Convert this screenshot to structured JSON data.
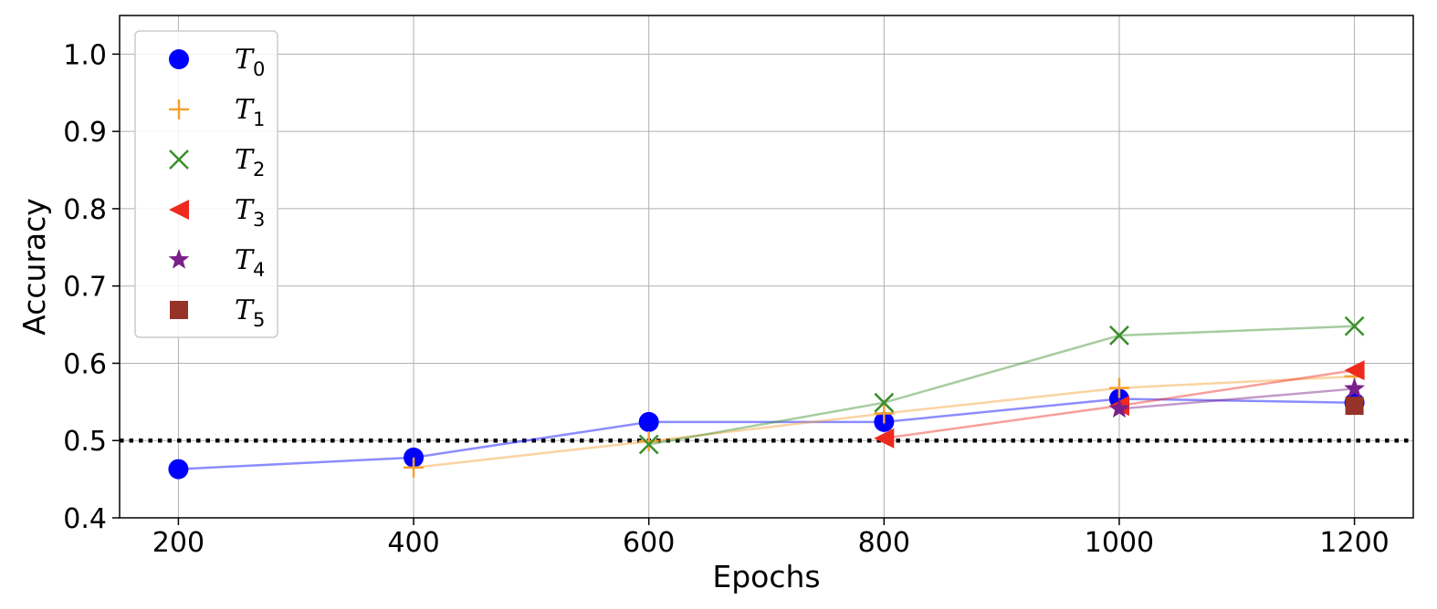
{
  "chart_data": {
    "type": "line",
    "title": "",
    "xlabel": "Epochs",
    "ylabel": "Accuracy",
    "xlim": [
      150,
      1250
    ],
    "ylim": [
      0.4,
      1.05
    ],
    "x_ticks": [
      200,
      400,
      600,
      800,
      1000,
      1200
    ],
    "x_tick_labels": [
      "200",
      "400",
      "600",
      "800",
      "1000",
      "1200"
    ],
    "y_ticks": [
      0.4,
      0.5,
      0.6,
      0.7,
      0.8,
      0.9,
      1.0
    ],
    "y_tick_labels": [
      "0.4",
      "0.5",
      "0.6",
      "0.7",
      "0.8",
      "0.9",
      "1.0"
    ],
    "grid": true,
    "legend_position": "top-left",
    "reference_line": {
      "y": 0.5,
      "style": "dotted",
      "color": "#000000"
    },
    "series": [
      {
        "name": "T",
        "sub": "0",
        "color": "#0000ff",
        "marker": "circle",
        "x": [
          200,
          400,
          600,
          800,
          1000,
          1200
        ],
        "y": [
          0.463,
          0.478,
          0.524,
          0.524,
          0.554,
          0.549
        ]
      },
      {
        "name": "T",
        "sub": "1",
        "color": "#f5a030",
        "marker": "plus",
        "x": [
          400,
          600,
          800,
          1000,
          1200
        ],
        "y": [
          0.465,
          0.499,
          0.535,
          0.568,
          0.583
        ]
      },
      {
        "name": "T",
        "sub": "2",
        "color": "#3a8f2a",
        "marker": "x",
        "x": [
          600,
          800,
          1000,
          1200
        ],
        "y": [
          0.495,
          0.549,
          0.636,
          0.648
        ]
      },
      {
        "name": "T",
        "sub": "3",
        "color": "#ee2a1e",
        "marker": "triangle-left",
        "x": [
          800,
          1000,
          1200
        ],
        "y": [
          0.503,
          0.545,
          0.591
        ]
      },
      {
        "name": "T",
        "sub": "4",
        "color": "#7b1f8a",
        "marker": "star",
        "x": [
          1000,
          1200
        ],
        "y": [
          0.541,
          0.567
        ]
      },
      {
        "name": "T",
        "sub": "5",
        "color": "#963228",
        "marker": "square",
        "x": [
          1200
        ],
        "y": [
          0.545
        ]
      }
    ]
  }
}
